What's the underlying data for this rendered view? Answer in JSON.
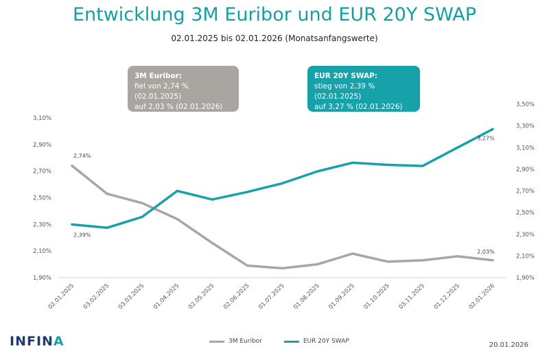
{
  "colors": {
    "euribor": "#a9a6a1",
    "swap": "#17a1a8",
    "title": "#159ea4",
    "logo": "#1e3a6e"
  },
  "header": {
    "title": "Entwicklung 3M Euribor und EUR 20Y SWAP",
    "subtitle": "02.01.2025 bis 02.01.2026 (Monatsanfangswerte)"
  },
  "callouts": {
    "euribor": {
      "head": "3M Euribor:",
      "line1": "fiel von 2,74 % (02.01.2025)",
      "line2": "auf 2,03 % (02.01.2026)"
    },
    "swap": {
      "head": "EUR 20Y SWAP:",
      "line1": "stieg von 2,39 % (02.01.2025)",
      "line2": "auf 3,27 % (02.01.2026)"
    }
  },
  "footer": {
    "logo_main": "INFIN",
    "logo_accent": "A",
    "date": "20.01.2026"
  },
  "chart_data": {
    "type": "line",
    "categories": [
      "02.01.2025",
      "03.02.2025",
      "03.03.2025",
      "01.04.2025",
      "02.05.2025",
      "02.06.2025",
      "01.07.2025",
      "01.08.2025",
      "01.09.2025",
      "01.10.2025",
      "03.11.2025",
      "01.12.2025",
      "02.01.2026"
    ],
    "series": [
      {
        "name": "3M Euribor",
        "axis": "left",
        "color": "#a9a6a1",
        "values": [
          2.74,
          2.53,
          2.46,
          2.34,
          2.16,
          1.99,
          1.97,
          2.0,
          2.08,
          2.02,
          2.03,
          2.06,
          2.03
        ]
      },
      {
        "name": "EUR 20Y SWAP",
        "axis": "right",
        "color": "#17a1a8",
        "values": [
          2.39,
          2.36,
          2.46,
          2.7,
          2.62,
          2.69,
          2.77,
          2.88,
          2.96,
          2.94,
          2.93,
          3.1,
          3.27
        ]
      }
    ],
    "left_axis": {
      "ylim": [
        1.9,
        3.1
      ],
      "ticks": [
        "1,90%",
        "2,10%",
        "2,30%",
        "2,50%",
        "2,70%",
        "2,90%",
        "3,10%"
      ]
    },
    "right_axis": {
      "ylim": [
        1.9,
        3.5
      ],
      "ticks": [
        "1,90%",
        "2,10%",
        "2,30%",
        "2,50%",
        "2,70%",
        "2,90%",
        "3,10%",
        "3,30%",
        "3,50%"
      ]
    },
    "data_labels": [
      {
        "series": 0,
        "index": 0,
        "text": "2,74%"
      },
      {
        "series": 0,
        "index": 12,
        "text": "2,03%"
      },
      {
        "series": 1,
        "index": 0,
        "text": "2,39%"
      },
      {
        "series": 1,
        "index": 12,
        "text": "3,27%"
      }
    ],
    "grid": false,
    "legend_position": "bottom"
  }
}
